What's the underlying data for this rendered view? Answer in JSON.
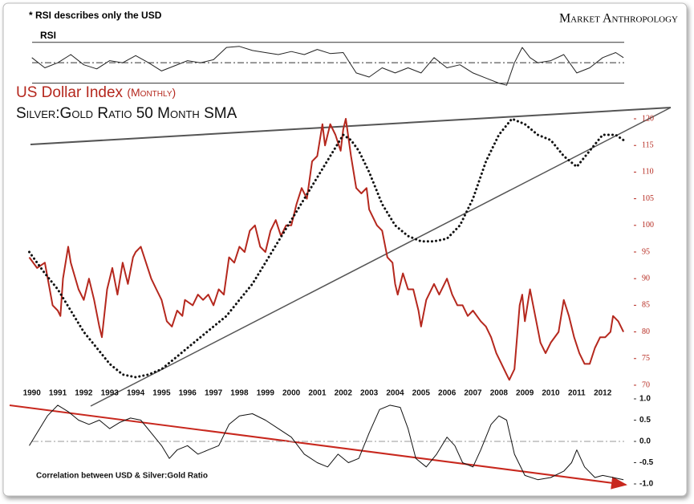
{
  "note": "* RSI describes only the USD",
  "brand": "Market Anthropology",
  "chart_data": [
    {
      "type": "line",
      "title": "RSI",
      "xlim": [
        1989.7,
        2013.2
      ],
      "ylim": [
        25,
        80
      ],
      "levels": [
        70,
        50,
        30
      ],
      "color": "#222222",
      "series": [
        {
          "x": [
            1990,
            1990.5,
            1991,
            1991.5,
            1992,
            1992.5,
            1993,
            1993.5,
            1994,
            1994.5,
            1995,
            1995.5,
            1996,
            1996.5,
            1997,
            1997.5,
            1998,
            1998.5,
            1999,
            1999.5,
            2000,
            2000.5,
            2001,
            2001.5,
            2002,
            2002.5,
            2003,
            2003.5,
            2004,
            2004.5,
            2005,
            2005.5,
            2006,
            2006.5,
            2007,
            2007.5,
            2008,
            2008.3,
            2008.6,
            2008.9,
            2009.2,
            2009.5,
            2010,
            2010.5,
            2011,
            2011.5,
            2012,
            2012.5,
            2012.8
          ],
          "values": [
            55,
            45,
            50,
            58,
            48,
            44,
            52,
            50,
            57,
            50,
            42,
            47,
            52,
            50,
            53,
            65,
            66,
            62,
            60,
            58,
            61,
            58,
            63,
            59,
            60,
            40,
            36,
            45,
            40,
            45,
            40,
            55,
            45,
            48,
            40,
            35,
            30,
            28,
            50,
            65,
            55,
            50,
            52,
            58,
            40,
            45,
            55,
            60,
            55
          ]
        }
      ]
    },
    {
      "type": "line",
      "subtitle": "(Monthly)",
      "xlim": [
        1989.7,
        2013.2
      ],
      "ylim": [
        69,
        121
      ],
      "xticks": [
        1990,
        1991,
        1992,
        1993,
        1994,
        1995,
        1996,
        1997,
        1998,
        1999,
        2000,
        2001,
        2002,
        2003,
        2004,
        2005,
        2006,
        2007,
        2008,
        2009,
        2010,
        2011,
        2012
      ],
      "yticks": [
        70,
        75,
        80,
        85,
        90,
        95,
        100,
        105,
        110,
        115,
        120
      ],
      "series": [
        {
          "name": "US Dollar Index",
          "color": "#b5281e",
          "style": "solid",
          "x": [
            1989.9,
            1990.2,
            1990.5,
            1990.8,
            1991.0,
            1991.1,
            1991.2,
            1991.4,
            1991.5,
            1991.8,
            1992.0,
            1992.2,
            1992.4,
            1992.6,
            1992.7,
            1992.9,
            1993.1,
            1993.3,
            1993.5,
            1993.7,
            1993.9,
            1994.0,
            1994.2,
            1994.4,
            1994.6,
            1994.8,
            1995.0,
            1995.2,
            1995.4,
            1995.6,
            1995.8,
            1995.9,
            1996.2,
            1996.4,
            1996.6,
            1996.8,
            1997.0,
            1997.2,
            1997.4,
            1997.6,
            1997.8,
            1998.0,
            1998.2,
            1998.4,
            1998.6,
            1998.8,
            1999.0,
            1999.2,
            1999.4,
            1999.6,
            1999.8,
            2000.0,
            2000.2,
            2000.4,
            2000.6,
            2000.8,
            2001.0,
            2001.2,
            2001.3,
            2001.5,
            2001.7,
            2001.9,
            2002.0,
            2002.1,
            2002.3,
            2002.5,
            2002.7,
            2002.9,
            2003.0,
            2003.3,
            2003.5,
            2003.7,
            2003.9,
            2004.0,
            2004.1,
            2004.3,
            2004.5,
            2004.7,
            2004.9,
            2005.0,
            2005.2,
            2005.5,
            2005.7,
            2005.9,
            2006.0,
            2006.2,
            2006.4,
            2006.6,
            2006.8,
            2007.0,
            2007.3,
            2007.5,
            2007.7,
            2007.9,
            2008.1,
            2008.3,
            2008.4,
            2008.6,
            2008.8,
            2008.9,
            2009.0,
            2009.2,
            2009.4,
            2009.6,
            2009.8,
            2010.0,
            2010.3,
            2010.5,
            2010.7,
            2010.9,
            2011.1,
            2011.3,
            2011.5,
            2011.7,
            2011.9,
            2012.1,
            2012.3,
            2012.4,
            2012.6,
            2012.8
          ],
          "values": [
            94,
            92,
            93,
            85,
            84,
            83,
            90,
            96,
            93,
            88,
            86,
            90,
            86,
            81,
            79,
            88,
            92,
            87,
            93,
            89,
            94,
            95,
            96,
            93,
            90,
            88,
            86,
            82,
            81,
            84,
            83,
            86,
            85,
            87,
            86,
            87,
            85,
            88,
            87,
            94,
            93,
            96,
            95,
            99,
            100,
            96,
            95,
            99,
            101,
            98,
            100,
            100,
            104,
            107,
            105,
            112,
            113,
            119,
            115,
            119,
            117,
            114,
            118,
            120,
            113,
            107,
            106,
            107,
            103,
            100,
            99,
            94,
            93,
            89,
            87,
            91,
            88,
            88,
            84,
            81,
            86,
            89,
            87,
            89,
            90,
            87,
            85,
            85,
            83,
            84,
            82,
            81,
            79,
            76,
            74,
            72,
            71,
            73,
            85,
            87,
            82,
            88,
            83,
            78,
            76,
            78,
            80,
            86,
            83,
            79,
            76,
            74,
            74,
            77,
            79,
            79,
            80,
            83,
            82,
            80
          ]
        },
        {
          "name": "Silver:Gold Ratio 50 Month SMA",
          "color": "#111111",
          "style": "dotted",
          "x": [
            1989.9,
            1990.5,
            1991.0,
            1991.5,
            1992.0,
            1992.5,
            1993.0,
            1993.5,
            1994.0,
            1994.5,
            1995.0,
            1995.5,
            1996.0,
            1996.5,
            1997.0,
            1997.5,
            1998.0,
            1998.5,
            1999.0,
            1999.5,
            2000.0,
            2000.5,
            2001.0,
            2001.5,
            2002.0,
            2002.3,
            2002.6,
            2003.0,
            2003.5,
            2004.0,
            2004.5,
            2005.0,
            2005.5,
            2006.0,
            2006.5,
            2007.0,
            2007.5,
            2008.0,
            2008.5,
            2009.0,
            2009.5,
            2010.0,
            2010.5,
            2011.0,
            2011.5,
            2012.0,
            2012.5,
            2012.8
          ],
          "values": [
            95,
            91,
            88,
            84,
            80,
            77,
            74,
            72,
            71.5,
            72,
            73,
            75,
            77,
            79,
            81,
            83,
            86,
            89,
            93,
            97,
            101,
            105,
            109,
            113,
            117,
            116,
            114,
            110,
            104,
            100,
            98,
            97,
            97,
            97.5,
            100,
            105,
            112,
            117,
            120,
            119,
            117,
            116,
            113,
            111,
            114,
            117,
            117,
            116
          ]
        }
      ]
    },
    {
      "type": "line",
      "title": "Correlation between USD & Silver:Gold Ratio",
      "xlim": [
        1989.7,
        2013.2
      ],
      "ylim": [
        -1,
        1
      ],
      "zero": 0,
      "color": "#111111",
      "yticks": [
        {
          "value": 1,
          "label": "1.0"
        },
        0.5,
        {
          "value": 0,
          "label": "0.0"
        },
        -0.5,
        {
          "value": -1,
          "label": "-1.0"
        }
      ],
      "series": [
        {
          "x": [
            1989.9,
            1990.2,
            1990.6,
            1991.0,
            1991.4,
            1991.8,
            1992.2,
            1992.6,
            1993.0,
            1993.4,
            1993.8,
            1994.2,
            1994.6,
            1995.0,
            1995.3,
            1995.6,
            1996.0,
            1996.4,
            1996.8,
            1997.2,
            1997.6,
            1998.0,
            1998.5,
            1999.0,
            1999.5,
            2000.0,
            2000.5,
            2001.0,
            2001.4,
            2001.8,
            2002.2,
            2002.6,
            2003.0,
            2003.4,
            2003.8,
            2004.2,
            2004.5,
            2004.8,
            2005.2,
            2005.6,
            2006.0,
            2006.3,
            2006.6,
            2007.0,
            2007.3,
            2007.7,
            2008.0,
            2008.3,
            2008.6,
            2009.0,
            2009.5,
            2010.0,
            2010.5,
            2010.8,
            2011.0,
            2011.3,
            2011.7,
            2012.0,
            2012.4,
            2012.8
          ],
          "values": [
            -0.1,
            0.2,
            0.6,
            0.85,
            0.7,
            0.5,
            0.4,
            0.5,
            0.3,
            0.45,
            0.55,
            0.5,
            0.2,
            -0.1,
            -0.4,
            -0.2,
            -0.1,
            -0.3,
            -0.2,
            -0.1,
            0.4,
            0.6,
            0.65,
            0.5,
            0.3,
            0.1,
            -0.3,
            -0.5,
            -0.6,
            -0.3,
            -0.5,
            -0.4,
            0.2,
            0.75,
            0.85,
            0.8,
            0.3,
            -0.4,
            -0.6,
            -0.3,
            0.1,
            -0.1,
            -0.5,
            -0.6,
            -0.2,
            0.4,
            0.6,
            0.5,
            -0.3,
            -0.8,
            -0.9,
            -0.85,
            -0.7,
            -0.5,
            -0.2,
            -0.6,
            -0.85,
            -0.8,
            -0.85,
            -0.9
          ]
        }
      ]
    }
  ]
}
